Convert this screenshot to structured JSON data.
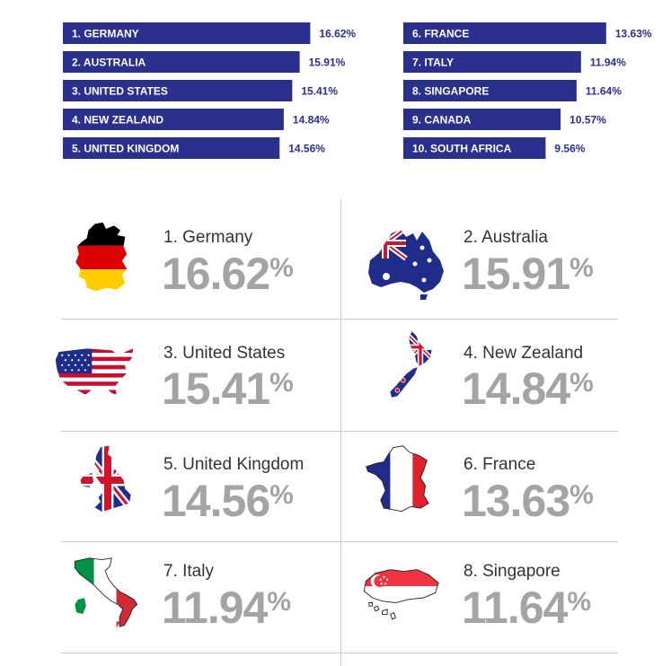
{
  "chart_data": [
    {
      "type": "bar",
      "orientation": "horizontal",
      "categories": [
        "1. GERMANY",
        "2. AUSTRALIA",
        "3. UNITED STATES",
        "4. NEW ZEALAND",
        "5. UNITED KINGDOM",
        "6. FRANCE",
        "7. ITALY",
        "8. SINGAPORE",
        "9. CANADA",
        "10. SOUTH AFRICA"
      ],
      "values": [
        16.62,
        15.91,
        15.41,
        14.84,
        14.56,
        13.63,
        11.94,
        11.64,
        10.57,
        9.56
      ],
      "value_labels": [
        "16.62%",
        "15.91%",
        "15.41%",
        "14.84%",
        "14.56%",
        "13.63%",
        "11.94%",
        "11.64%",
        "10.57%",
        "9.56%"
      ],
      "bar_color": "#2b2f8e",
      "label_color": "#ffffff",
      "value_color": "#2b2f8e"
    }
  ],
  "cards": [
    {
      "title": "1. Germany",
      "value": "16.62",
      "unit": "%",
      "icon": "germany-flag-map-icon"
    },
    {
      "title": "2. Australia",
      "value": "15.91",
      "unit": "%",
      "icon": "australia-flag-map-icon"
    },
    {
      "title": "3. United States",
      "value": "15.41",
      "unit": "%",
      "icon": "usa-flag-map-icon"
    },
    {
      "title": "4. New Zealand",
      "value": "14.84",
      "unit": "%",
      "icon": "new-zealand-flag-map-icon"
    },
    {
      "title": "5. United Kingdom",
      "value": "14.56",
      "unit": "%",
      "icon": "uk-flag-map-icon"
    },
    {
      "title": "6. France",
      "value": "13.63",
      "unit": "%",
      "icon": "france-flag-map-icon"
    },
    {
      "title": "7. Italy",
      "value": "11.94",
      "unit": "%",
      "icon": "italy-flag-map-icon"
    },
    {
      "title": "8. Singapore",
      "value": "11.64",
      "unit": "%",
      "icon": "singapore-flag-map-icon"
    }
  ],
  "colors": {
    "navy": "#2b2f8e",
    "gray_value": "#a3a4a7",
    "text": "#333333",
    "divider": "#c9c9c9"
  }
}
